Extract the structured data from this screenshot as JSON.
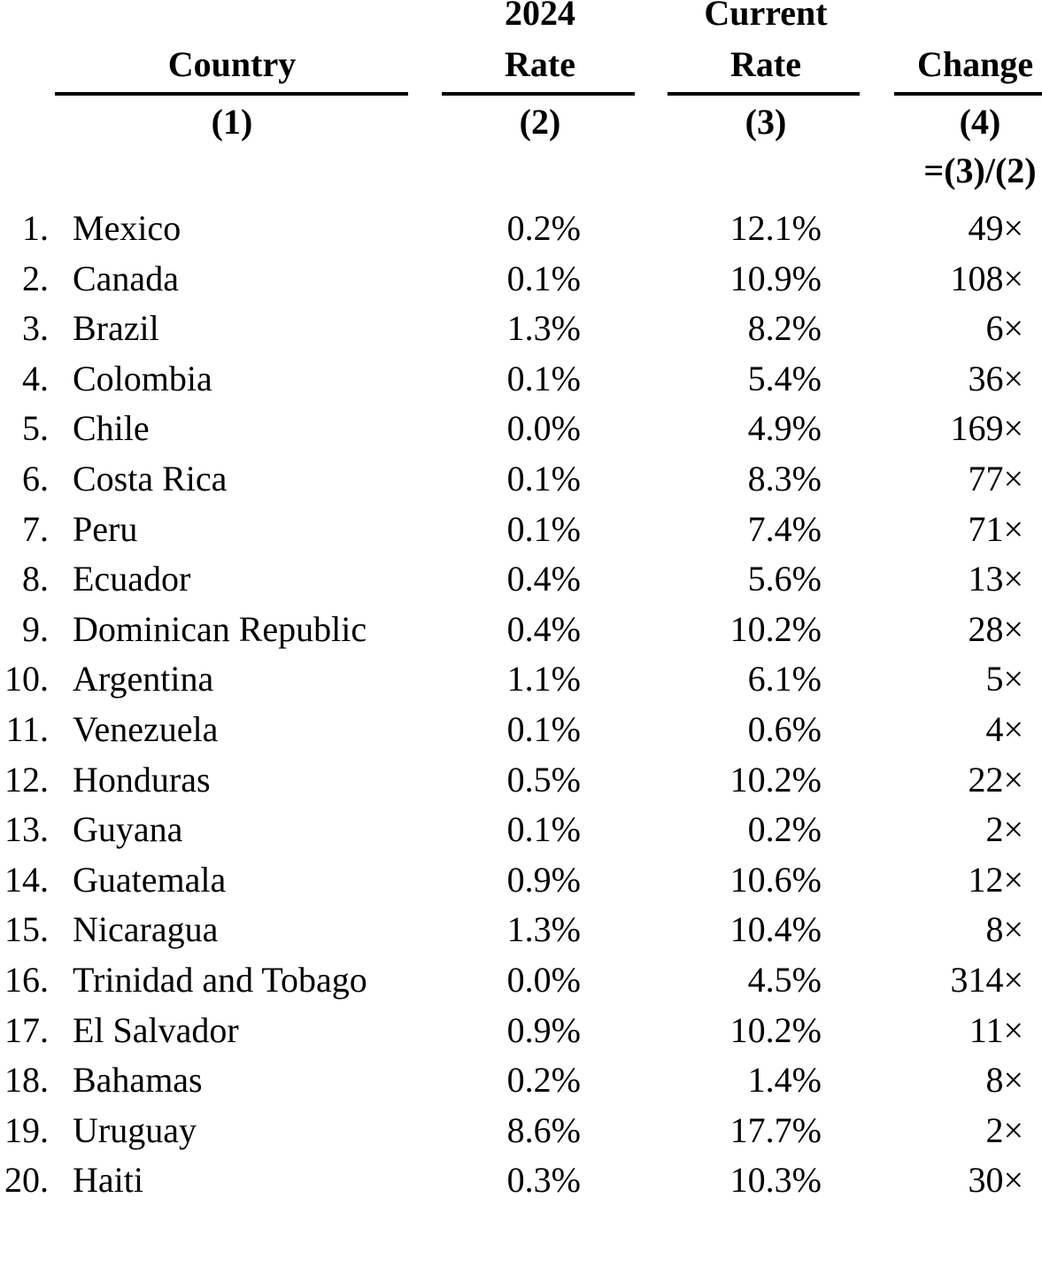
{
  "header": {
    "col1": {
      "line1": "",
      "line2": "Country",
      "num": "(1)"
    },
    "col2": {
      "line1": "2024",
      "line2": "Rate",
      "num": "(2)"
    },
    "col3": {
      "line1": "Current",
      "line2": "Rate",
      "num": "(3)"
    },
    "col4": {
      "line1": "",
      "line2": "Change",
      "num": "(4)",
      "formula": "=(3)/(2)"
    }
  },
  "rows": [
    {
      "rank": "1.",
      "country": "Mexico",
      "rate_2024": "0.2%",
      "current_rate": "12.1%",
      "change": "49×"
    },
    {
      "rank": "2.",
      "country": "Canada",
      "rate_2024": "0.1%",
      "current_rate": "10.9%",
      "change": "108×"
    },
    {
      "rank": "3.",
      "country": "Brazil",
      "rate_2024": "1.3%",
      "current_rate": "8.2%",
      "change": "6×"
    },
    {
      "rank": "4.",
      "country": "Colombia",
      "rate_2024": "0.1%",
      "current_rate": "5.4%",
      "change": "36×"
    },
    {
      "rank": "5.",
      "country": "Chile",
      "rate_2024": "0.0%",
      "current_rate": "4.9%",
      "change": "169×"
    },
    {
      "rank": "6.",
      "country": "Costa Rica",
      "rate_2024": "0.1%",
      "current_rate": "8.3%",
      "change": "77×"
    },
    {
      "rank": "7.",
      "country": "Peru",
      "rate_2024": "0.1%",
      "current_rate": "7.4%",
      "change": "71×"
    },
    {
      "rank": "8.",
      "country": "Ecuador",
      "rate_2024": "0.4%",
      "current_rate": "5.6%",
      "change": "13×"
    },
    {
      "rank": "9.",
      "country": "Dominican Republic",
      "rate_2024": "0.4%",
      "current_rate": "10.2%",
      "change": "28×"
    },
    {
      "rank": "10.",
      "country": "Argentina",
      "rate_2024": "1.1%",
      "current_rate": "6.1%",
      "change": "5×"
    },
    {
      "rank": "11.",
      "country": "Venezuela",
      "rate_2024": "0.1%",
      "current_rate": "0.6%",
      "change": "4×"
    },
    {
      "rank": "12.",
      "country": "Honduras",
      "rate_2024": "0.5%",
      "current_rate": "10.2%",
      "change": "22×"
    },
    {
      "rank": "13.",
      "country": "Guyana",
      "rate_2024": "0.1%",
      "current_rate": "0.2%",
      "change": "2×"
    },
    {
      "rank": "14.",
      "country": "Guatemala",
      "rate_2024": "0.9%",
      "current_rate": "10.6%",
      "change": "12×"
    },
    {
      "rank": "15.",
      "country": "Nicaragua",
      "rate_2024": "1.3%",
      "current_rate": "10.4%",
      "change": "8×"
    },
    {
      "rank": "16.",
      "country": "Trinidad and Tobago",
      "rate_2024": "0.0%",
      "current_rate": "4.5%",
      "change": "314×"
    },
    {
      "rank": "17.",
      "country": "El Salvador",
      "rate_2024": "0.9%",
      "current_rate": "10.2%",
      "change": "11×"
    },
    {
      "rank": "18.",
      "country": "Bahamas",
      "rate_2024": "0.2%",
      "current_rate": "1.4%",
      "change": "8×"
    },
    {
      "rank": "19.",
      "country": "Uruguay",
      "rate_2024": "8.6%",
      "current_rate": "17.7%",
      "change": "2×"
    },
    {
      "rank": "20.",
      "country": "Haiti",
      "rate_2024": "0.3%",
      "current_rate": "10.3%",
      "change": "30×"
    }
  ]
}
